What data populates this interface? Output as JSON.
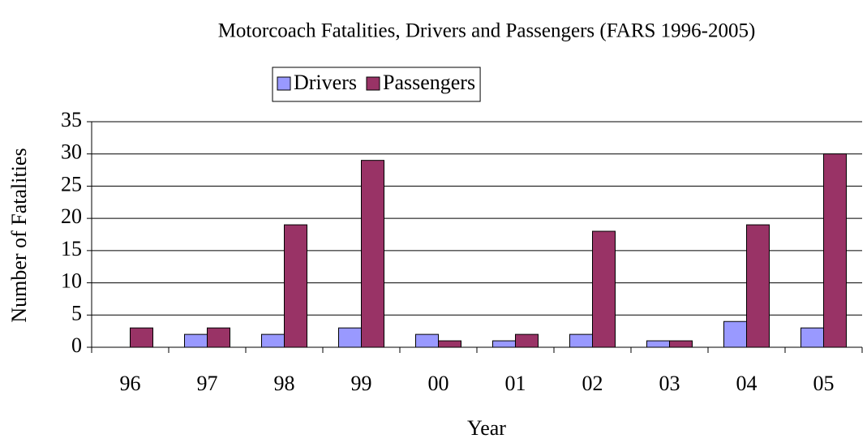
{
  "chart_data": {
    "type": "bar",
    "title": "Motorcoach Fatalities, Drivers and Passengers (FARS 1996-2005)",
    "x_label": "Year",
    "y_label": "Number of Fatalities",
    "categories": [
      "96",
      "97",
      "98",
      "99",
      "00",
      "01",
      "02",
      "03",
      "04",
      "05"
    ],
    "series": [
      {
        "name": "Drivers",
        "color": "#9999ff",
        "values": [
          0,
          2,
          2,
          3,
          2,
          1,
          2,
          1,
          4,
          3
        ]
      },
      {
        "name": "Passengers",
        "color": "#993366",
        "values": [
          3,
          3,
          19,
          29,
          1,
          2,
          18,
          1,
          19,
          30
        ]
      }
    ],
    "ylim": [
      0,
      35
    ],
    "yticks": [
      0,
      5,
      10,
      15,
      20,
      25,
      30,
      35
    ],
    "grid": true,
    "legend": "top"
  }
}
